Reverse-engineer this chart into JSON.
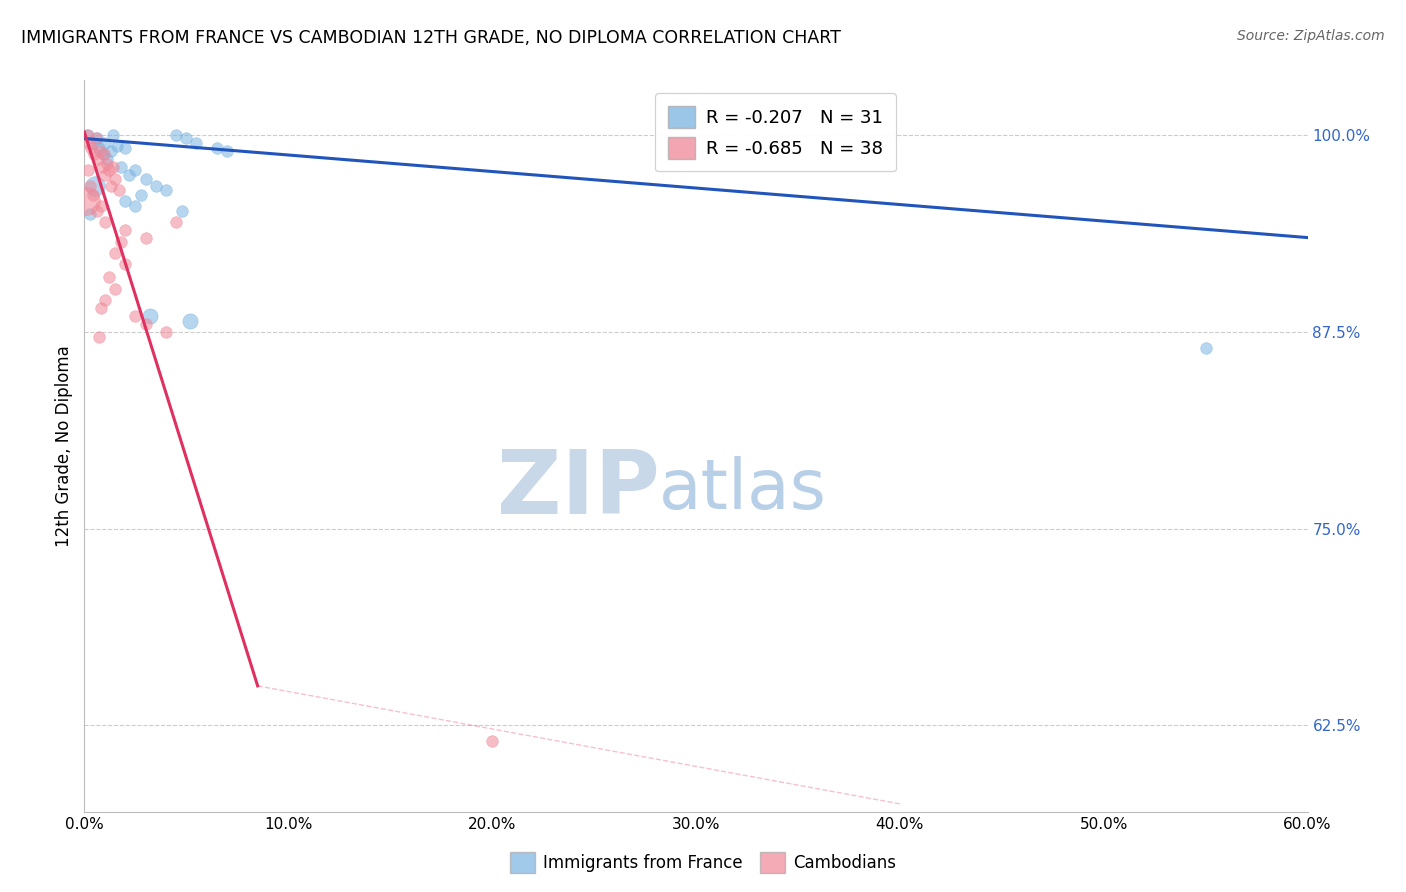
{
  "title": "IMMIGRANTS FROM FRANCE VS CAMBODIAN 12TH GRADE, NO DIPLOMA CORRELATION CHART",
  "source": "Source: ZipAtlas.com",
  "ylabel": "12th Grade, No Diploma",
  "R_blue": -0.207,
  "N_blue": 31,
  "R_pink": -0.685,
  "N_pink": 38,
  "blue_color": "#7ab3e0",
  "pink_color": "#f08898",
  "blue_line_color": "#2255bb",
  "pink_line_color": "#e03060",
  "watermark_zip_color": "#c8d8e8",
  "watermark_atlas_color": "#b8cfe8",
  "background_color": "#ffffff",
  "grid_color": "#cccccc",
  "xlim": [
    0.0,
    60.0
  ],
  "ylim": [
    57.0,
    103.5
  ],
  "y_tick_show": [
    62.5,
    75.0,
    87.5,
    100.0
  ],
  "legend_blue_label": "Immigrants from France",
  "legend_pink_label": "Cambodians",
  "blue_regression": [
    0.0,
    99.8,
    60.0,
    93.5
  ],
  "pink_regression_solid": [
    0.0,
    100.2,
    8.5,
    65.0
  ],
  "pink_regression_dashed": [
    8.5,
    65.0,
    40.0,
    57.5
  ],
  "blue_points": [
    [
      0.2,
      100.0,
      70
    ],
    [
      0.4,
      99.5,
      70
    ],
    [
      0.6,
      99.8,
      70
    ],
    [
      0.7,
      99.2,
      70
    ],
    [
      0.9,
      98.8,
      70
    ],
    [
      1.0,
      99.5,
      70
    ],
    [
      1.1,
      98.5,
      70
    ],
    [
      1.3,
      99.0,
      70
    ],
    [
      1.4,
      100.0,
      70
    ],
    [
      1.6,
      99.3,
      70
    ],
    [
      1.8,
      98.0,
      70
    ],
    [
      2.0,
      99.2,
      70
    ],
    [
      2.2,
      97.5,
      70
    ],
    [
      2.5,
      97.8,
      70
    ],
    [
      3.0,
      97.2,
      70
    ],
    [
      3.5,
      96.8,
      70
    ],
    [
      4.0,
      96.5,
      70
    ],
    [
      4.5,
      100.0,
      70
    ],
    [
      5.0,
      99.8,
      70
    ],
    [
      5.5,
      99.5,
      70
    ],
    [
      6.5,
      99.2,
      70
    ],
    [
      7.0,
      99.0,
      70
    ],
    [
      2.0,
      95.8,
      70
    ],
    [
      2.8,
      96.2,
      70
    ],
    [
      2.5,
      95.5,
      70
    ],
    [
      0.5,
      96.8,
      200
    ],
    [
      0.3,
      95.0,
      70
    ],
    [
      3.2,
      88.5,
      120
    ],
    [
      5.2,
      88.2,
      120
    ],
    [
      55.0,
      86.5,
      70
    ],
    [
      4.8,
      95.2,
      70
    ]
  ],
  "pink_points": [
    [
      0.15,
      100.0,
      70
    ],
    [
      0.25,
      99.5,
      70
    ],
    [
      0.35,
      99.2,
      70
    ],
    [
      0.45,
      98.8,
      70
    ],
    [
      0.55,
      99.8,
      70
    ],
    [
      0.65,
      98.5,
      70
    ],
    [
      0.75,
      99.0,
      70
    ],
    [
      0.85,
      98.0,
      70
    ],
    [
      0.95,
      98.8,
      70
    ],
    [
      1.0,
      97.5,
      70
    ],
    [
      1.1,
      98.2,
      70
    ],
    [
      1.2,
      97.8,
      70
    ],
    [
      1.3,
      96.8,
      70
    ],
    [
      1.4,
      98.0,
      70
    ],
    [
      1.5,
      97.2,
      70
    ],
    [
      1.7,
      96.5,
      70
    ],
    [
      0.2,
      97.8,
      70
    ],
    [
      0.3,
      96.8,
      70
    ],
    [
      0.4,
      96.2,
      70
    ],
    [
      0.1,
      95.8,
      400
    ],
    [
      0.6,
      95.2,
      70
    ],
    [
      0.8,
      95.5,
      70
    ],
    [
      1.0,
      94.5,
      70
    ],
    [
      2.0,
      94.0,
      70
    ],
    [
      3.0,
      93.5,
      70
    ],
    [
      1.5,
      92.5,
      70
    ],
    [
      2.0,
      91.8,
      70
    ],
    [
      1.2,
      91.0,
      70
    ],
    [
      1.5,
      90.2,
      70
    ],
    [
      1.0,
      89.5,
      70
    ],
    [
      0.8,
      89.0,
      70
    ],
    [
      2.5,
      88.5,
      70
    ],
    [
      3.0,
      88.0,
      70
    ],
    [
      4.0,
      87.5,
      70
    ],
    [
      0.7,
      87.2,
      70
    ],
    [
      1.8,
      93.2,
      70
    ],
    [
      4.5,
      94.5,
      70
    ],
    [
      20.0,
      61.5,
      70
    ]
  ]
}
